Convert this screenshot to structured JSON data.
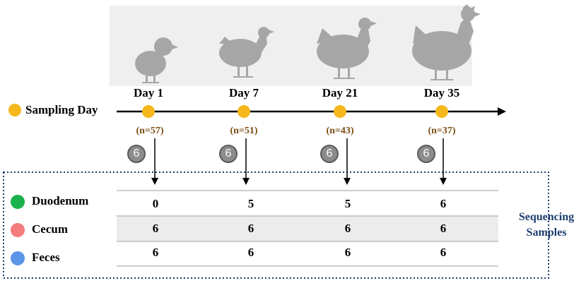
{
  "timeline": {
    "legend_label": "Sampling Day",
    "dot_color": "#f5b71b",
    "days": [
      {
        "label": "Day 1",
        "n": "(n=57)",
        "badge": "6"
      },
      {
        "label": "Day 7",
        "n": "(n=51)",
        "badge": "6"
      },
      {
        "label": "Day 21",
        "n": "(n=43)",
        "badge": "6"
      },
      {
        "label": "Day 35",
        "n": "(n=37)",
        "badge": "6"
      }
    ]
  },
  "table": {
    "rows": [
      {
        "label": "Duodenum",
        "color": "#1bb24b",
        "values": [
          "0",
          "5",
          "5",
          "6"
        ]
      },
      {
        "label": "Cecum",
        "color": "#f47c7c",
        "values": [
          "6",
          "6",
          "6",
          "6"
        ]
      },
      {
        "label": "Feces",
        "color": "#5b95e8",
        "values": [
          "6",
          "6",
          "6",
          "6"
        ]
      }
    ],
    "side_label_line1": "Sequencing",
    "side_label_line2": "Samples"
  },
  "colors": {
    "chicken_banner": "#efefef",
    "chicken": "#a6a6a6",
    "row_stripe": "#ececec",
    "dashed_border": "#1c3d6e"
  },
  "icons": [
    "chick-icon",
    "pullet-icon",
    "hen-icon",
    "rooster-icon"
  ]
}
